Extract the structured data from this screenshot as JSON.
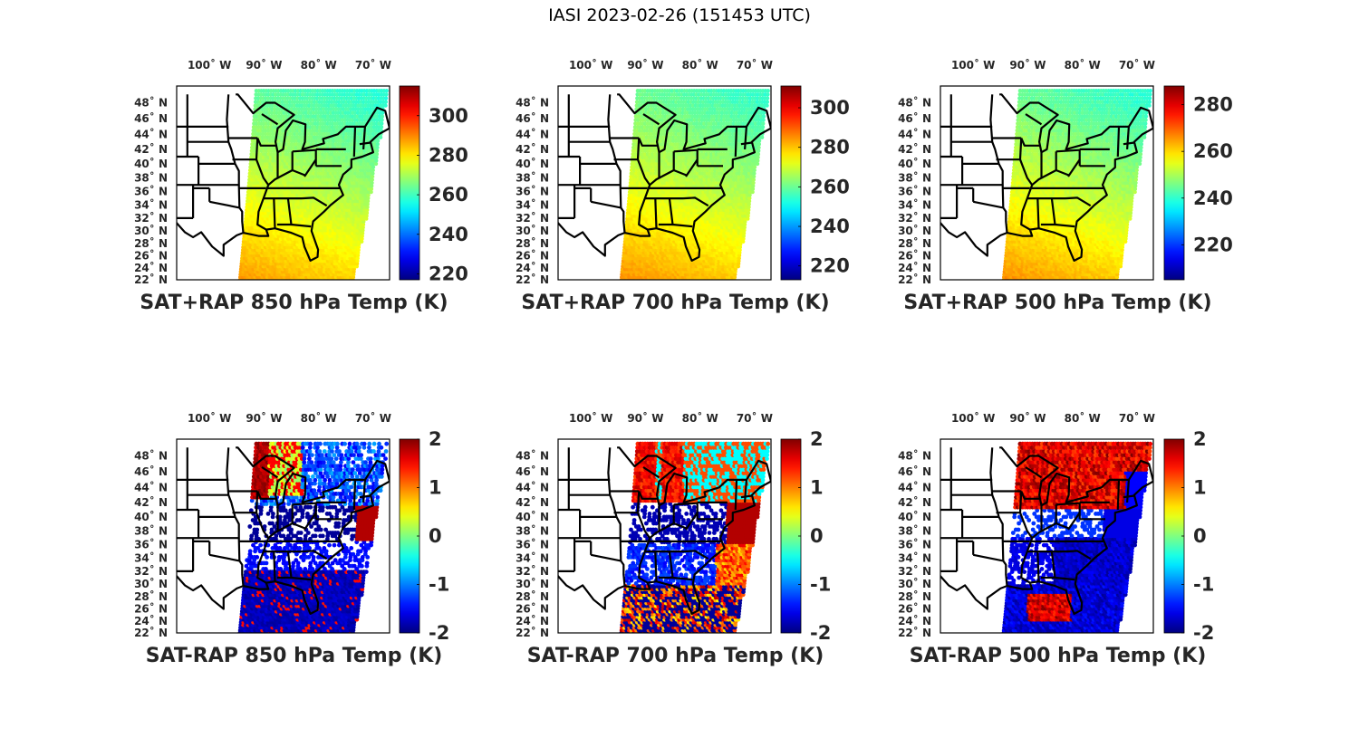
{
  "figure": {
    "title": "IASI 2023-02-26 (151453 UTC)"
  },
  "chart_data": [
    {
      "type": "heatmap",
      "id": "sat-rap-850",
      "title": "SAT+RAP 850 hPa Temp (K)",
      "xlabel": "",
      "ylabel": "",
      "lon_ticks": [
        "100° W",
        "90° W",
        "80° W",
        "70° W"
      ],
      "lon_tick_values": [
        -100,
        -90,
        -80,
        -70
      ],
      "lat_ticks": [
        "48° N",
        "46° N",
        "44° N",
        "42° N",
        "40° N",
        "38° N",
        "36° N",
        "34° N",
        "32° N",
        "30° N",
        "28° N",
        "26° N",
        "24° N",
        "22° N"
      ],
      "lat_tick_values": [
        48,
        46,
        44,
        42,
        40,
        38,
        36,
        34,
        32,
        30,
        28,
        26,
        24,
        22
      ],
      "xlim": [
        -106,
        -67
      ],
      "ylim": [
        22,
        50
      ],
      "colormap": "jet",
      "clim": [
        217,
        315
      ],
      "colorbar_ticks": [
        220,
        240,
        260,
        280,
        300
      ],
      "field_summary": {
        "north_value": 258,
        "south_value": 288,
        "gradient": "cold north-east, warm south-west"
      }
    },
    {
      "type": "heatmap",
      "id": "sat-rap-700",
      "title": "SAT+RAP 700 hPa Temp (K)",
      "lon_ticks": [
        "100° W",
        "90° W",
        "80° W",
        "70° W"
      ],
      "lon_tick_values": [
        -100,
        -90,
        -80,
        -70
      ],
      "lat_ticks": [
        "48° N",
        "46° N",
        "44° N",
        "42° N",
        "40° N",
        "38° N",
        "36° N",
        "34° N",
        "32° N",
        "30° N",
        "28° N",
        "26° N",
        "24° N",
        "22° N"
      ],
      "lat_tick_values": [
        48,
        46,
        44,
        42,
        40,
        38,
        36,
        34,
        32,
        30,
        28,
        26,
        24,
        22
      ],
      "xlim": [
        -106,
        -67
      ],
      "ylim": [
        22,
        50
      ],
      "colormap": "jet",
      "clim": [
        213,
        311
      ],
      "colorbar_ticks": [
        220,
        240,
        260,
        280,
        300
      ],
      "field_summary": {
        "north_value": 255,
        "south_value": 285,
        "gradient": "cold north-east, warm south-west"
      }
    },
    {
      "type": "heatmap",
      "id": "sat-rap-500",
      "title": "SAT+RAP 500 hPa Temp (K)",
      "lon_ticks": [
        "100° W",
        "90° W",
        "80° W",
        "70° W"
      ],
      "lon_tick_values": [
        -100,
        -90,
        -80,
        -70
      ],
      "lat_ticks": [
        "48° N",
        "46° N",
        "44° N",
        "42° N",
        "40° N",
        "38° N",
        "36° N",
        "34° N",
        "32° N",
        "30° N",
        "28° N",
        "26° N",
        "24° N",
        "22° N"
      ],
      "lat_tick_values": [
        48,
        46,
        44,
        42,
        40,
        38,
        36,
        34,
        32,
        30,
        28,
        26,
        24,
        22
      ],
      "xlim": [
        -106,
        -67
      ],
      "ylim": [
        22,
        50
      ],
      "colormap": "jet",
      "clim": [
        205,
        288
      ],
      "colorbar_ticks": [
        220,
        240,
        260,
        280
      ],
      "field_summary": {
        "north_value": 240,
        "south_value": 266,
        "gradient": "cold north-east, warm south-west"
      }
    },
    {
      "type": "heatmap",
      "id": "sat-minus-rap-850",
      "title": "SAT-RAP 850 hPa Temp (K)",
      "lon_ticks": [
        "100° W",
        "90° W",
        "80° W",
        "70° W"
      ],
      "lon_tick_values": [
        -100,
        -90,
        -80,
        -70
      ],
      "lat_ticks": [
        "48° N",
        "46° N",
        "44° N",
        "42° N",
        "40° N",
        "38° N",
        "36° N",
        "34° N",
        "32° N",
        "30° N",
        "28° N",
        "26° N",
        "24° N",
        "22° N"
      ],
      "lat_tick_values": [
        48,
        46,
        44,
        42,
        40,
        38,
        36,
        34,
        32,
        30,
        28,
        26,
        24,
        22
      ],
      "xlim": [
        -106,
        -67
      ],
      "ylim": [
        22,
        50
      ],
      "colormap": "jet",
      "clim": [
        -2,
        2
      ],
      "colorbar_ticks": [
        -2,
        -1,
        0,
        1,
        2
      ],
      "field_summary": {
        "pattern": "mostly negative (-2) with warm anomaly (+2) over upper Midwest and off mid-Atlantic coast"
      }
    },
    {
      "type": "heatmap",
      "id": "sat-minus-rap-700",
      "title": "SAT-RAP 700 hPa Temp (K)",
      "lon_ticks": [
        "100° W",
        "90° W",
        "80° W",
        "70° W"
      ],
      "lon_tick_values": [
        -100,
        -90,
        -80,
        -70
      ],
      "lat_ticks": [
        "48° N",
        "46° N",
        "44° N",
        "42° N",
        "40° N",
        "38° N",
        "36° N",
        "34° N",
        "32° N",
        "30° N",
        "28° N",
        "26° N",
        "24° N",
        "22° N"
      ],
      "lat_tick_values": [
        48,
        46,
        44,
        42,
        40,
        38,
        36,
        34,
        32,
        30,
        28,
        26,
        24,
        22
      ],
      "xlim": [
        -106,
        -67
      ],
      "ylim": [
        22,
        50
      ],
      "colormap": "jet",
      "clim": [
        -2,
        2
      ],
      "colorbar_ticks": [
        -2,
        -1,
        0,
        1,
        2
      ],
      "field_summary": {
        "pattern": "mixed: positive over Great Lakes and Atlantic, negative over Ohio Valley and Gulf"
      }
    },
    {
      "type": "heatmap",
      "id": "sat-minus-rap-500",
      "title": "SAT-RAP 500 hPa Temp (K)",
      "lon_ticks": [
        "100° W",
        "90° W",
        "80° W",
        "70° W"
      ],
      "lon_tick_values": [
        -100,
        -90,
        -80,
        -70
      ],
      "lat_ticks": [
        "48° N",
        "46° N",
        "44° N",
        "42° N",
        "40° N",
        "38° N",
        "36° N",
        "34° N",
        "32° N",
        "30° N",
        "28° N",
        "26° N",
        "24° N",
        "22° N"
      ],
      "lat_tick_values": [
        48,
        46,
        44,
        42,
        40,
        38,
        36,
        34,
        32,
        30,
        28,
        26,
        24,
        22
      ],
      "xlim": [
        -106,
        -67
      ],
      "ylim": [
        22,
        50
      ],
      "colormap": "jet",
      "clim": [
        -2,
        2
      ],
      "colorbar_ticks": [
        -2,
        -1,
        0,
        1,
        2
      ],
      "field_summary": {
        "pattern": "positive (+1 to +2) across northern half, negative (-2) across south-east with warm patch over Gulf"
      }
    }
  ]
}
